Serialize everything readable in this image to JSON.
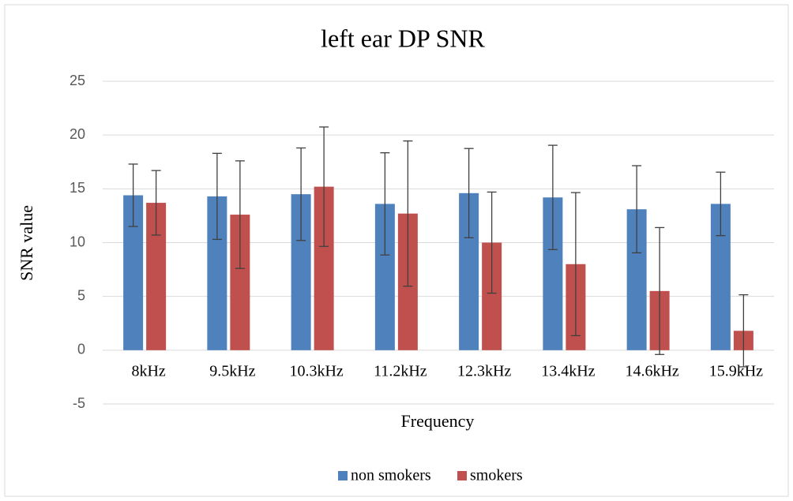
{
  "chart_data": {
    "type": "bar",
    "title": "left ear DP SNR",
    "x_label": "Frequency",
    "y_label": "SNR value",
    "categories": [
      "8kHz",
      "9.5kHz",
      "10.3kHz",
      "11.2kHz",
      "12.3kHz",
      "13.4kHz",
      "14.6kHz",
      "15.9kHz"
    ],
    "series": [
      {
        "name": "non smokers",
        "color": "#4f81bd",
        "values": [
          14.4,
          14.3,
          14.5,
          13.6,
          14.6,
          14.2,
          13.1,
          13.6
        ],
        "errors": [
          2.9,
          4.0,
          4.3,
          4.75,
          4.15,
          4.85,
          4.05,
          2.95
        ]
      },
      {
        "name": "smokers",
        "color": "#c0504d",
        "values": [
          13.7,
          12.6,
          15.2,
          12.7,
          10.0,
          8.0,
          5.5,
          1.8
        ],
        "errors": [
          3.0,
          5.0,
          5.55,
          6.75,
          4.7,
          6.65,
          5.9,
          3.35
        ]
      }
    ],
    "ylim": [
      -5,
      25
    ],
    "yticks": [
      -5,
      0,
      5,
      10,
      15,
      20,
      25
    ],
    "grid": true,
    "legend": "bottom"
  }
}
